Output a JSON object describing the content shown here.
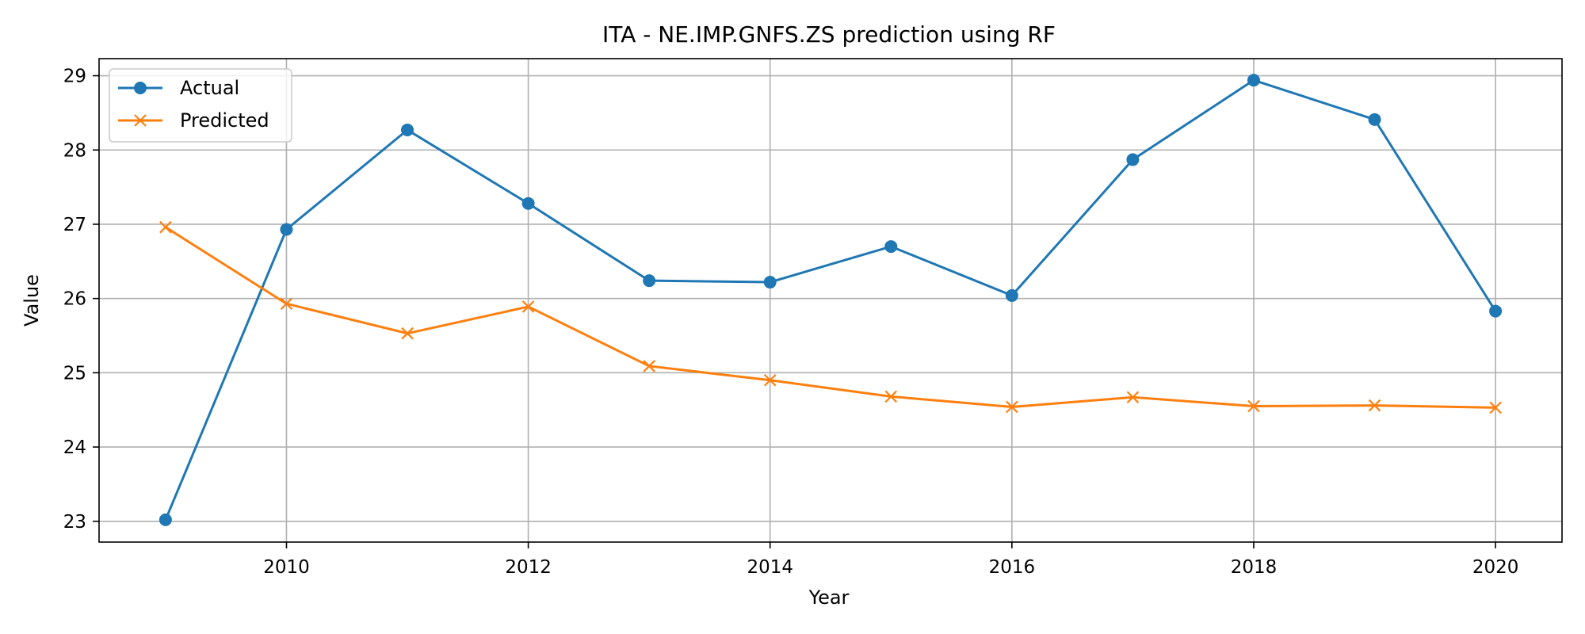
{
  "chart_data": {
    "type": "line",
    "title": "ITA - NE.IMP.GNFS.ZS prediction using RF",
    "xlabel": "Year",
    "ylabel": "Value",
    "x": [
      2009,
      2010,
      2011,
      2012,
      2013,
      2014,
      2015,
      2016,
      2017,
      2018,
      2019,
      2020
    ],
    "xlim": [
      2008.45,
      2020.55
    ],
    "ylim": [
      22.72,
      29.23
    ],
    "xticks": [
      2010,
      2012,
      2014,
      2016,
      2018,
      2020
    ],
    "yticks": [
      23,
      24,
      25,
      26,
      27,
      28,
      29
    ],
    "grid": true,
    "legend_position": "top-left",
    "series": [
      {
        "name": "Actual",
        "color": "#1f77b4",
        "marker": "circle",
        "values": [
          23.02,
          26.93,
          28.27,
          27.28,
          26.24,
          26.22,
          26.7,
          26.04,
          27.87,
          28.94,
          28.41,
          25.83
        ]
      },
      {
        "name": "Predicted",
        "color": "#ff7f0e",
        "marker": "x",
        "values": [
          26.96,
          25.93,
          25.53,
          25.89,
          25.09,
          24.9,
          24.68,
          24.54,
          24.67,
          24.55,
          24.56,
          24.53
        ]
      }
    ]
  }
}
